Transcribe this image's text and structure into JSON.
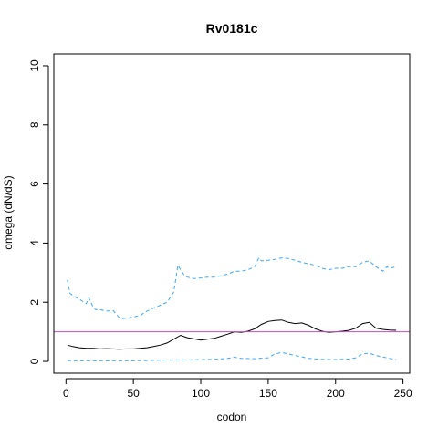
{
  "chart_data": {
    "type": "line",
    "title": "Rv0181c",
    "xlabel": "codon",
    "ylabel": "omega (dN/dS)",
    "xlim": [
      0,
      250
    ],
    "ylim": [
      0,
      10
    ],
    "x_ticks": [
      0,
      50,
      100,
      150,
      200,
      250
    ],
    "y_ticks": [
      0,
      2,
      4,
      6,
      8,
      10
    ],
    "reference_line": {
      "y": 1,
      "color": "#c050c0"
    },
    "series": [
      {
        "style": "solid",
        "color": "#000000",
        "x": [
          1,
          5,
          10,
          15,
          20,
          25,
          30,
          35,
          40,
          45,
          50,
          55,
          60,
          65,
          70,
          75,
          80,
          85,
          90,
          95,
          100,
          105,
          110,
          115,
          120,
          125,
          130,
          135,
          140,
          145,
          150,
          155,
          160,
          165,
          170,
          175,
          180,
          185,
          190,
          195,
          200,
          205,
          210,
          215,
          220,
          225,
          230,
          235,
          240,
          245
        ],
        "y": [
          0.55,
          0.5,
          0.46,
          0.44,
          0.44,
          0.42,
          0.43,
          0.42,
          0.41,
          0.42,
          0.42,
          0.44,
          0.46,
          0.5,
          0.55,
          0.62,
          0.75,
          0.88,
          0.8,
          0.76,
          0.72,
          0.75,
          0.78,
          0.85,
          0.92,
          1.0,
          0.98,
          1.02,
          1.1,
          1.25,
          1.35,
          1.38,
          1.4,
          1.32,
          1.28,
          1.3,
          1.22,
          1.1,
          1.02,
          0.98,
          1.0,
          1.02,
          1.05,
          1.12,
          1.28,
          1.32,
          1.12,
          1.08,
          1.06,
          1.05
        ]
      },
      {
        "style": "dashed",
        "color": "#3fa9f5",
        "x": [
          1,
          3,
          6,
          10,
          15,
          17,
          20,
          22,
          25,
          30,
          35,
          40,
          45,
          50,
          55,
          60,
          65,
          70,
          75,
          80,
          83,
          85,
          88,
          90,
          95,
          100,
          105,
          110,
          115,
          120,
          125,
          130,
          135,
          140,
          143,
          145,
          150,
          155,
          160,
          165,
          170,
          175,
          180,
          185,
          190,
          195,
          200,
          205,
          210,
          215,
          220,
          225,
          230,
          235,
          238,
          240,
          245
        ],
        "y": [
          2.75,
          2.3,
          2.2,
          2.1,
          1.95,
          2.15,
          1.85,
          1.75,
          1.75,
          1.7,
          1.72,
          1.45,
          1.45,
          1.5,
          1.55,
          1.7,
          1.8,
          1.9,
          2.0,
          2.35,
          3.25,
          3.1,
          2.9,
          2.85,
          2.8,
          2.82,
          2.85,
          2.85,
          2.9,
          2.95,
          3.05,
          3.05,
          3.1,
          3.2,
          3.5,
          3.4,
          3.42,
          3.45,
          3.5,
          3.48,
          3.42,
          3.35,
          3.3,
          3.25,
          3.15,
          3.1,
          3.15,
          3.15,
          3.2,
          3.2,
          3.35,
          3.4,
          3.2,
          3.05,
          3.2,
          3.15,
          3.2
        ]
      },
      {
        "style": "dashed",
        "color": "#3fa9f5",
        "x": [
          1,
          10,
          20,
          30,
          40,
          50,
          60,
          70,
          80,
          90,
          100,
          110,
          120,
          125,
          130,
          140,
          150,
          155,
          160,
          165,
          170,
          180,
          190,
          200,
          210,
          215,
          220,
          225,
          230,
          240,
          245
        ],
        "y": [
          0.03,
          0.02,
          0.02,
          0.02,
          0.02,
          0.02,
          0.03,
          0.04,
          0.05,
          0.05,
          0.06,
          0.07,
          0.1,
          0.14,
          0.1,
          0.09,
          0.12,
          0.25,
          0.3,
          0.25,
          0.2,
          0.1,
          0.07,
          0.06,
          0.08,
          0.12,
          0.25,
          0.28,
          0.2,
          0.1,
          0.06
        ]
      }
    ]
  }
}
